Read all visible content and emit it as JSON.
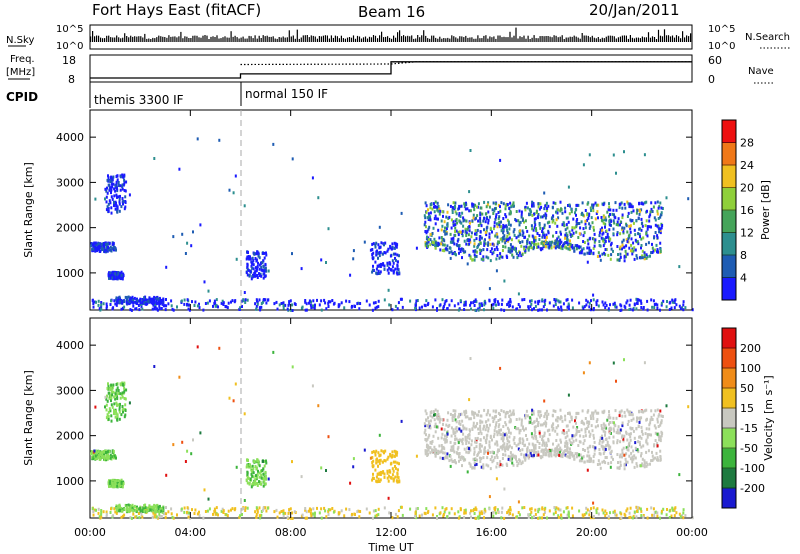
{
  "header": {
    "station": "Fort Hays East (fitACF)",
    "beam": "Beam 16",
    "date": "20/Jan/2011"
  },
  "chart_data": [
    {
      "type": "line",
      "panel": "nsky-nsearch",
      "left_label": "N.Sky",
      "right_label": "N.Search",
      "left_ticks": [
        "10^5",
        "10^0"
      ],
      "right_ticks": [
        "10^5",
        "10^0"
      ]
    },
    {
      "type": "line",
      "panel": "freq-nave",
      "left_label": "Freq.",
      "left_unit": "[MHz]",
      "right_label": "Nave",
      "left_ticks": [
        "18",
        "8"
      ],
      "right_ticks": [
        "60",
        "0"
      ],
      "ylim_left": [
        8,
        18
      ],
      "ylim_right": [
        0,
        60
      ],
      "series": [
        {
          "name": "Freq.",
          "style": "solid",
          "x": [
            0,
            6,
            6,
            12,
            12,
            24
          ],
          "y": [
            9.5,
            9.5,
            11.0,
            11.0,
            15.5,
            15.5
          ]
        },
        {
          "name": "Nave",
          "style": "dotted",
          "x": [
            6,
            12,
            13,
            24
          ],
          "y": [
            39,
            40,
            45,
            45
          ]
        }
      ]
    },
    {
      "type": "table",
      "panel": "cpid",
      "label": "CPID",
      "segments": [
        {
          "name": "themis 3300 IF",
          "start": 0,
          "end": 6
        },
        {
          "name": "normal 150 IF",
          "start": 6,
          "end": 24
        }
      ]
    },
    {
      "type": "heatmap",
      "panel": "power",
      "ylabel": "Slant Range [km]",
      "yticks": [
        1000,
        2000,
        3000,
        4000
      ],
      "ylim": [
        180,
        4600
      ],
      "colorbar": {
        "label": "Power [dB]",
        "ticks": [
          4,
          8,
          12,
          16,
          20,
          24,
          28
        ],
        "colors": [
          "#1a1aff",
          "#1e5cb3",
          "#2d8f8f",
          "#45a45a",
          "#8fcf3a",
          "#f0c020",
          "#f07818",
          "#ee1010"
        ]
      },
      "scatter_clusters": [
        {
          "t0": 0.0,
          "t1": 1.0,
          "r0": 1500,
          "r1": 1700,
          "c": "b"
        },
        {
          "t0": 0.6,
          "t1": 1.4,
          "r0": 2350,
          "r1": 3200,
          "c": "b"
        },
        {
          "t0": 1.0,
          "t1": 2.9,
          "r0": 350,
          "r1": 500,
          "c": "b"
        },
        {
          "t0": 0.7,
          "t1": 1.3,
          "r0": 900,
          "r1": 1050,
          "c": "b"
        },
        {
          "t0": 6.2,
          "t1": 7.0,
          "r0": 900,
          "r1": 1500,
          "c": "b"
        },
        {
          "t0": 11.2,
          "t1": 12.3,
          "r0": 1000,
          "r1": 1700,
          "c": "b"
        },
        {
          "t0": 13.3,
          "t1": 22.8,
          "r0": 1300,
          "r1": 2600,
          "c": "g"
        }
      ]
    },
    {
      "type": "heatmap",
      "panel": "velocity",
      "ylabel": "Slant Range [km]",
      "yticks": [
        1000,
        2000,
        3000,
        4000
      ],
      "ylim": [
        180,
        4600
      ],
      "colorbar": {
        "label": "Velocity [m s⁻¹]",
        "ticks": [
          200,
          100,
          50,
          15,
          -15,
          -50,
          -100,
          -200
        ],
        "colors": [
          "#1a1ad0",
          "#1e7a40",
          "#3cb43c",
          "#8ce05a",
          "#c8c8c0",
          "#f0c020",
          "#f08c18",
          "#ee5010",
          "#e01010"
        ]
      },
      "xlabel": "Time UT",
      "xticks": [
        "00:00",
        "04:00",
        "08:00",
        "12:00",
        "16:00",
        "20:00",
        "00:00"
      ],
      "xlim": [
        0,
        24
      ]
    }
  ]
}
